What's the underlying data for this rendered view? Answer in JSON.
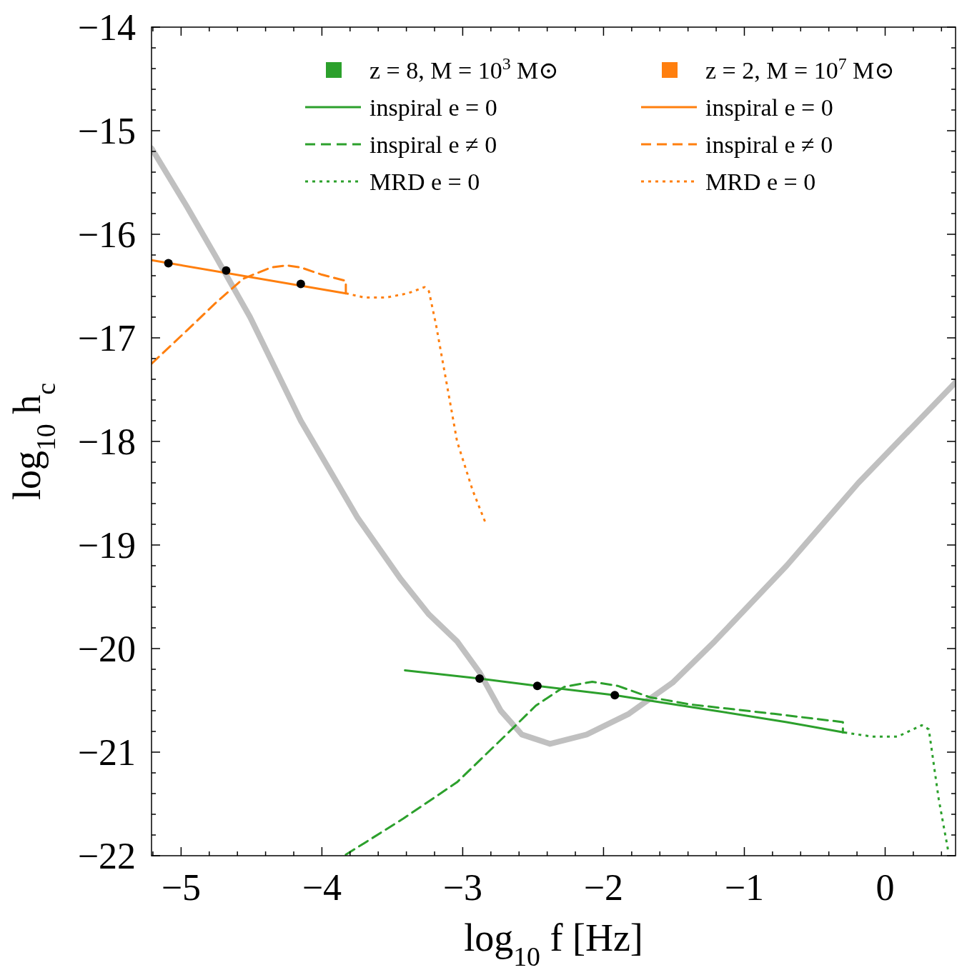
{
  "chart_data": {
    "type": "line",
    "xlabel": "log$_{10}$ f  [Hz]",
    "ylabel": "log$_{10}$ h$_{c}$",
    "xlim": [
      -5.21,
      0.5
    ],
    "ylim": [
      -22,
      -14
    ],
    "xticks": [
      {
        "value": -5,
        "label": "−5"
      },
      {
        "value": -4,
        "label": "−4"
      },
      {
        "value": -3,
        "label": "−3"
      },
      {
        "value": -2,
        "label": "−2"
      },
      {
        "value": -1,
        "label": "−1"
      },
      0,
      {
        "value": -5.2,
        "label": null
      },
      {
        "value": -4.8,
        "label": null
      },
      {
        "value": -4.6,
        "label": null
      },
      {
        "value": -4.4,
        "label": null
      },
      {
        "value": -4.2,
        "label": null
      },
      {
        "value": -3.8,
        "label": null
      },
      {
        "value": -3.6,
        "label": null
      },
      {
        "value": -3.4,
        "label": null
      },
      {
        "value": -3.2,
        "label": null
      },
      {
        "value": -2.8,
        "label": null
      },
      {
        "value": -2.6,
        "label": null
      },
      {
        "value": -2.4,
        "label": null
      },
      {
        "value": -2.2,
        "label": null
      },
      {
        "value": -1.8,
        "label": null
      },
      {
        "value": -1.6,
        "label": null
      },
      {
        "value": -1.4,
        "label": null
      },
      {
        "value": -1.2,
        "label": null
      },
      {
        "value": -0.8,
        "label": null
      },
      {
        "value": -0.6,
        "label": null
      },
      {
        "value": -0.4,
        "label": null
      },
      {
        "value": -0.2,
        "label": null
      },
      {
        "value": 0.2,
        "label": null
      },
      {
        "value": 0.4,
        "label": null
      }
    ],
    "yticks": [
      {
        "value": -22,
        "label": "−22"
      },
      {
        "value": -21,
        "label": "−21"
      },
      {
        "value": -20,
        "label": "−20"
      },
      {
        "value": -19,
        "label": "−19"
      },
      {
        "value": -18,
        "label": "−18"
      },
      {
        "value": -17,
        "label": "−17"
      },
      {
        "value": -16,
        "label": "−16"
      },
      {
        "value": -15,
        "label": "−15"
      },
      {
        "value": -14,
        "label": "−14"
      },
      {
        "value": -21.8,
        "label": null
      },
      {
        "value": -21.6,
        "label": null
      },
      {
        "value": -21.4,
        "label": null
      },
      {
        "value": -21.2,
        "label": null
      },
      {
        "value": -20.8,
        "label": null
      },
      {
        "value": -20.6,
        "label": null
      },
      {
        "value": -20.4,
        "label": null
      },
      {
        "value": -20.2,
        "label": null
      },
      {
        "value": -19.8,
        "label": null
      },
      {
        "value": -19.6,
        "label": null
      },
      {
        "value": -19.4,
        "label": null
      },
      {
        "value": -19.2,
        "label": null
      },
      {
        "value": -18.8,
        "label": null
      },
      {
        "value": -18.6,
        "label": null
      },
      {
        "value": -18.4,
        "label": null
      },
      {
        "value": -18.2,
        "label": null
      },
      {
        "value": -17.8,
        "label": null
      },
      {
        "value": -17.6,
        "label": null
      },
      {
        "value": -17.4,
        "label": null
      },
      {
        "value": -17.2,
        "label": null
      },
      {
        "value": -16.8,
        "label": null
      },
      {
        "value": -16.6,
        "label": null
      },
      {
        "value": -16.4,
        "label": null
      },
      {
        "value": -16.2,
        "label": null
      },
      {
        "value": -15.8,
        "label": null
      },
      {
        "value": -15.6,
        "label": null
      },
      {
        "value": -15.4,
        "label": null
      },
      {
        "value": -15.2,
        "label": null
      },
      {
        "value": -14.8,
        "label": null
      },
      {
        "value": -14.6,
        "label": null
      },
      {
        "value": -14.4,
        "label": null
      },
      {
        "value": -14.2,
        "label": null
      }
    ],
    "grid": false,
    "legend": "top right",
    "series": [
      {
        "color": "#c0c0c0",
        "line_style": "solid",
        "x": [
          -5.21,
          -4.96,
          -4.76,
          -4.51,
          -4.15,
          -3.75,
          -3.44,
          -3.24,
          -3.04,
          -2.88,
          -2.73,
          -2.58,
          -2.38,
          -2.12,
          -1.82,
          -1.51,
          -1.21,
          -0.7,
          -0.19,
          0.5
        ],
        "values": [
          -15.17,
          -15.73,
          -16.2,
          -16.8,
          -17.8,
          -18.73,
          -19.33,
          -19.67,
          -19.93,
          -20.23,
          -20.6,
          -20.83,
          -20.92,
          -20.83,
          -20.63,
          -20.33,
          -19.93,
          -19.2,
          -18.4,
          -17.43
        ]
      },
      {
        "type": "scatter",
        "name": "z = 8,  M = 10$^{3}$ M⊙",
        "color": "#2ca02c",
        "marker": "square"
      },
      {
        "name": "inspiral e = 0",
        "color": "#2ca02c",
        "line_style": "solid",
        "x": [
          -3.41,
          -2.88,
          -2.47,
          -1.92,
          -1.21,
          -0.7,
          -0.29
        ],
        "values": [
          -20.21,
          -20.29,
          -20.36,
          -20.45,
          -20.6,
          -20.71,
          -20.81
        ]
      },
      {
        "name": "inspiral e ≠ 0",
        "color": "#2ca02c",
        "line_style": "dashed",
        "x": [
          -3.83,
          -3.42,
          -3.04,
          -2.69,
          -2.48,
          -2.28,
          -2.08,
          -1.9,
          -1.67,
          -1.38,
          -0.79,
          -0.3,
          -0.3
        ],
        "values": [
          -21.99,
          -21.64,
          -21.29,
          -20.83,
          -20.55,
          -20.37,
          -20.32,
          -20.36,
          -20.47,
          -20.54,
          -20.63,
          -20.71,
          -20.81
        ]
      },
      {
        "name": "MRD e = 0",
        "color": "#2ca02c",
        "line_style": "dotted",
        "x": [
          -0.29,
          -0.09,
          0.09,
          0.26,
          0.31,
          0.38,
          0.45
        ],
        "values": [
          -20.81,
          -20.85,
          -20.85,
          -20.74,
          -20.78,
          -21.45,
          -21.97
        ]
      },
      {
        "type": "scatter",
        "name": "z = 2,  M = 10$^{7}$ M⊙",
        "color": "#ff7f0e",
        "marker": "square"
      },
      {
        "name": "inspiral e = 0",
        "color": "#ff7f0e",
        "line_style": "solid",
        "x": [
          -5.21,
          -3.83
        ],
        "values": [
          -16.25,
          -16.57
        ]
      },
      {
        "name": "inspiral e ≠ 0",
        "color": "#ff7f0e",
        "line_style": "dashed",
        "x": [
          -5.21,
          -4.96,
          -4.76,
          -4.56,
          -4.36,
          -4.25,
          -4.15,
          -4.0,
          -3.83,
          -3.83
        ],
        "values": [
          -17.25,
          -16.93,
          -16.67,
          -16.43,
          -16.32,
          -16.3,
          -16.32,
          -16.39,
          -16.45,
          -16.57
        ]
      },
      {
        "name": "MRD e = 0",
        "color": "#ff7f0e",
        "line_style": "dotted",
        "x": [
          -3.83,
          -3.7,
          -3.54,
          -3.39,
          -3.27,
          -3.24,
          -3.19,
          -3.11,
          -3.04,
          -2.93,
          -2.84
        ],
        "values": [
          -16.57,
          -16.61,
          -16.61,
          -16.57,
          -16.51,
          -16.55,
          -16.87,
          -17.47,
          -18.0,
          -18.47,
          -18.78
        ]
      },
      {
        "type": "scatter",
        "color": "#000000",
        "marker": "circle",
        "x": [
          -2.88,
          -2.47,
          -1.92,
          -5.09,
          -4.68,
          -4.15
        ],
        "values": [
          -20.29,
          -20.36,
          -20.45,
          -16.28,
          -16.35,
          -16.48
        ]
      }
    ]
  }
}
